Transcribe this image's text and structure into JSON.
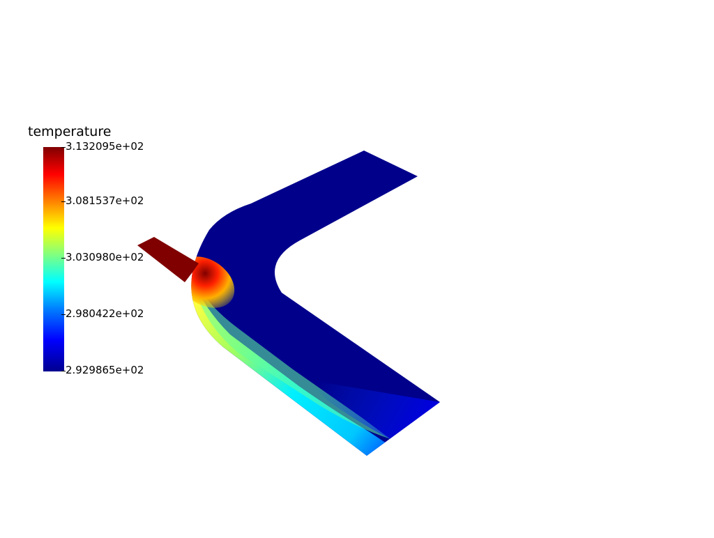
{
  "scalar_bar": {
    "title": "temperature",
    "ticks": [
      "3.132095e+02",
      "3.081537e+02",
      "3.030980e+02",
      "2.980422e+02",
      "2.929865e+02"
    ],
    "range": [
      292.9865,
      313.2095
    ],
    "colormap": [
      "#00008f",
      "#0000ff",
      "#0080ff",
      "#00ffff",
      "#80ff80",
      "#ffff00",
      "#ff8000",
      "#ff0000",
      "#800000"
    ]
  },
  "scene": {
    "background": "#ffffff",
    "field": "temperature",
    "inlet_color": "#800000",
    "bulk_color": "#00008b"
  }
}
